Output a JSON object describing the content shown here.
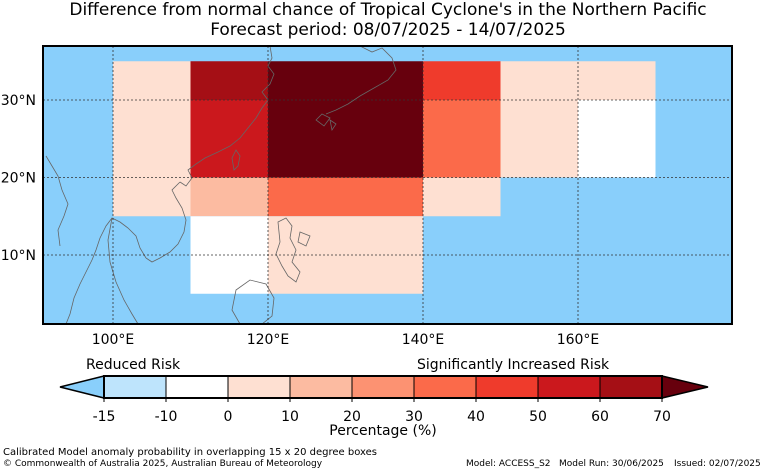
{
  "title_line1": "Difference from normal chance of Tropical Cyclone's in the Northern Pacific",
  "title_line2": "Forecast period: 08/07/2025 - 14/07/2025",
  "map": {
    "ocean_color": "#89cffb",
    "lon_ticks": [
      "100°E",
      "120°E",
      "140°E",
      "160°E"
    ],
    "lat_ticks": [
      "30°N",
      "20°N",
      "10°N"
    ],
    "gridlines": true
  },
  "cells": [
    {
      "lon": [
        100,
        110
      ],
      "lat": [
        30,
        35
      ],
      "pct": 5
    },
    {
      "lon": [
        100,
        110
      ],
      "lat": [
        20,
        30
      ],
      "pct": 5
    },
    {
      "lon": [
        100,
        110
      ],
      "lat": [
        15,
        20
      ],
      "pct": 0
    },
    {
      "lon": [
        110,
        120
      ],
      "lat": [
        30,
        35
      ],
      "pct": 65
    },
    {
      "lon": [
        110,
        120
      ],
      "lat": [
        20,
        30
      ],
      "pct": 55
    },
    {
      "lon": [
        110,
        120
      ],
      "lat": [
        15,
        20
      ],
      "pct": 15
    },
    {
      "lon": [
        110,
        120
      ],
      "lat": [
        5,
        15
      ],
      "pct": -5
    },
    {
      "lon": [
        120,
        140
      ],
      "lat": [
        20,
        35
      ],
      "pct": 70
    },
    {
      "lon": [
        120,
        140
      ],
      "lat": [
        15,
        20
      ],
      "pct": 35
    },
    {
      "lon": [
        120,
        140
      ],
      "lat": [
        5,
        15
      ],
      "pct": 0
    },
    {
      "lon": [
        140,
        150
      ],
      "lat": [
        30,
        35
      ],
      "pct": 45
    },
    {
      "lon": [
        140,
        150
      ],
      "lat": [
        20,
        30
      ],
      "pct": 35
    },
    {
      "lon": [
        140,
        150
      ],
      "lat": [
        15,
        20
      ],
      "pct": 5
    },
    {
      "lon": [
        150,
        160
      ],
      "lat": [
        30,
        35
      ],
      "pct": 5
    },
    {
      "lon": [
        150,
        160
      ],
      "lat": [
        20,
        30
      ],
      "pct": 0
    },
    {
      "lon": [
        160,
        170
      ],
      "lat": [
        30,
        35
      ],
      "pct": 0
    },
    {
      "lon": [
        160,
        170
      ],
      "lat": [
        20,
        30
      ],
      "pct": -5
    }
  ],
  "colorbar": {
    "ticks": [
      "-15",
      "-10",
      "0",
      "10",
      "20",
      "30",
      "40",
      "50",
      "60",
      "70"
    ],
    "colors": [
      "#89cffb",
      "#bee4fc",
      "#ffffff",
      "#fee0d2",
      "#fcbba1",
      "#fc9272",
      "#fb6a4a",
      "#ef3b2c",
      "#cb181d",
      "#a50f15",
      "#67000d"
    ],
    "label_low": "Reduced Risk",
    "label_high": "Significantly Increased Risk",
    "xlabel": "Percentage (%)"
  },
  "footer": {
    "note": "Calibrated Model anomaly probability in overlapping 15 x 20 degree boxes",
    "copyright": "© Commonwealth of Australia 2025, Australian Bureau of Meteorology",
    "model": "Model: ACCESS_S2",
    "model_run": "Model Run: 30/06/2025",
    "issued": "Issued: 02/07/2025"
  }
}
